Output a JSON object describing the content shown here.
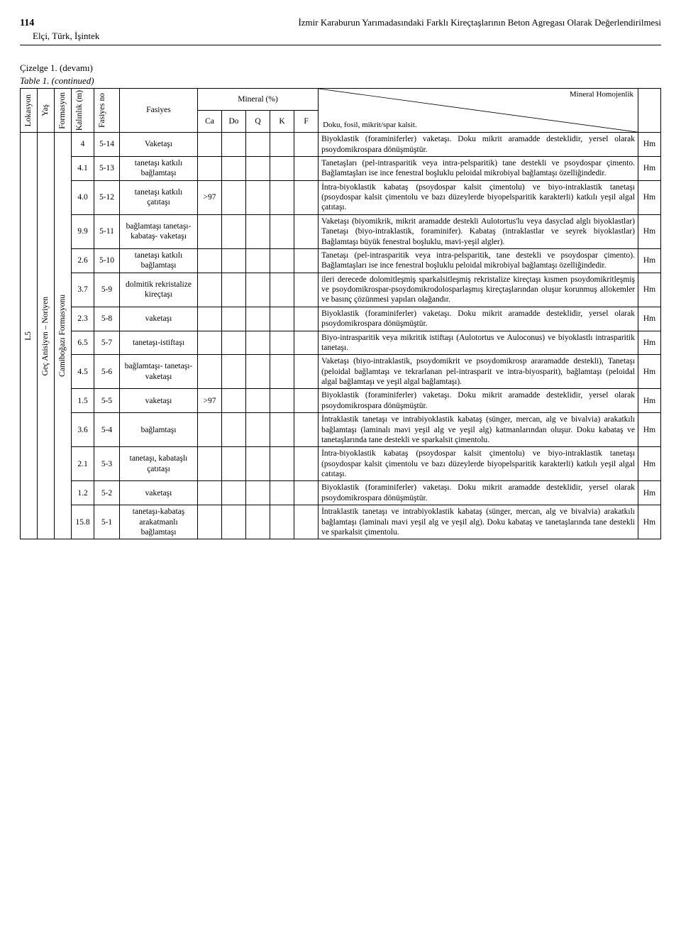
{
  "header": {
    "page_number": "114",
    "title": "İzmir Karaburun Yarımadasındaki Farklı Kireçtaşlarının Beton Agregası Olarak Değerlendirilmesi",
    "authors": "Elçi, Türk, İşintek"
  },
  "caption": {
    "line1_a": "Çizelge 1.",
    "line1_b": "(devamı)",
    "line2_a": "Table 1.",
    "line2_b": "(continued)"
  },
  "table_head": {
    "lokasyon": "Lokasyon",
    "yas": "Yaş",
    "formasyon": "Formasyon",
    "kalinlik": "Kalınlık (m)",
    "fasiyes_no": "Fasiyes no",
    "fasiyes": "Fasiyes",
    "mineral_pct": "Mineral (%)",
    "mineral_homojenlik": "Mineral Homojenlik",
    "doku": "Doku, fosil, mikrit/spar kalsit.",
    "Ca": "Ca",
    "Do": "Do",
    "Q": "Q",
    "K": "K",
    "F": "F"
  },
  "group": {
    "lokasyon": "L5",
    "yas": "Geç Anisiyen – Noriyen",
    "formasyon": "Camiboğazı Formasyonu"
  },
  "rows": [
    {
      "kal": "4",
      "fno": "5-14",
      "fas": "Vaketaşı",
      "ca": "",
      "do": "",
      "q": "",
      "k": "",
      "f": "",
      "desc": "Biyoklastik (foraminiferler) vaketaşı. Doku mikrit aramadde desteklidir, yersel olarak psoydomikrospara dönüşmüştür.",
      "hm": "Hm"
    },
    {
      "kal": "4.1",
      "fno": "5-13",
      "fas": "tanetaşı katkılı bağlamtaşı",
      "ca": "",
      "do": "",
      "q": "",
      "k": "",
      "f": "",
      "desc": "Tanetaşları (pel-intrasparitik veya intra-pelsparitik) tane destekli ve psoydospar çimento. Bağlamtaşları ise ince fenestral boşluklu peloidal mikrobiyal bağlamtaşı özelliğindedir.",
      "hm": "Hm"
    },
    {
      "kal": "4.0",
      "fno": "5-12",
      "fas": "tanetaşı katkılı çatıtaşı",
      "ca": ">97",
      "do": "",
      "q": "",
      "k": "",
      "f": "",
      "desc": "İntra-biyoklastik kabataş (psoydospar kalsit çimentolu) ve biyo-intraklastik tanetaşı (psoydospar kalsit çimentolu ve bazı düzeylerde biyopelsparitik karakterli) katkılı yeşil algal çatıtaşı.",
      "hm": "Hm"
    },
    {
      "kal": "9.9",
      "fno": "5-11",
      "fas": "bağlamtaşı tanetaşı- kabataş- vaketaşı",
      "ca": "",
      "do": "",
      "q": "",
      "k": "",
      "f": "",
      "desc": "Vaketaşı (biyomikrik, mikrit aramadde destekli Aulotortus'lu veya dasyclad alglı biyoklastlar) Tanetaşı (biyo-intraklastik, foraminifer). Kabataş (intraklastlar ve seyrek biyoklastlar) Bağlamtaşı büyük fenestral boşluklu, mavi-yeşil algler).",
      "hm": "Hm"
    },
    {
      "kal": "2.6",
      "fno": "5-10",
      "fas": "tanetaşı katkılı bağlamtaşı",
      "ca": "",
      "do": "",
      "q": "",
      "k": "",
      "f": "",
      "desc": "Tanetaşı (pel-intrasparitik veya intra-pelsparitik, tane destekli ve psoydospar çimento). Bağlamtaşları ise ince fenestral boşluklu peloidal mikrobiyal bağlamtaşı özelliğindedir.",
      "hm": "Hm"
    },
    {
      "kal": "3.7",
      "fno": "5-9",
      "fas": "dolmitik rekristalize kireçtaşı",
      "ca": "",
      "do": "",
      "q": "",
      "k": "",
      "f": "",
      "desc": "ileri derecede dolomitleşmiş sparkalsitleşmiş rekristalize kireçtaşı kısmen psoydomikritleşmiş ve psoydomikrospar-psoydomikrodolosparlaşmış kireçtaşlarından oluşur korunmuş allokemler ve basınç çözünmesi yapıları olağandır.",
      "hm": "Hm"
    },
    {
      "kal": "2.3",
      "fno": "5-8",
      "fas": "vaketaşı",
      "ca": "",
      "do": "",
      "q": "",
      "k": "",
      "f": "",
      "desc": "Biyoklastik (foraminiferler) vaketaşı. Doku mikrit aramadde desteklidir, yersel olarak psoydomikrospara dönüşmüştür.",
      "hm": "Hm"
    },
    {
      "kal": "6.5",
      "fno": "5-7",
      "fas": "tanetaşı-istiftaşı",
      "ca": "",
      "do": "",
      "q": "",
      "k": "",
      "f": "",
      "desc": "Biyo-intrasparitik veya mikritik istiftaşı (Aulotortus ve Auloconus) ve biyoklastlı intrasparitik tanetaşı.",
      "hm": "Hm"
    },
    {
      "kal": "4.5",
      "fno": "5-6",
      "fas": "bağlamtaşı- tanetaşı- vaketaşı",
      "ca": "",
      "do": "",
      "q": "",
      "k": "",
      "f": "",
      "desc": "Vaketaşı (biyo-intraklastik, psoydomikrit ve psoydomikrosp araramadde destekli), Tanetaşı (peloidal bağlamtaşı ve tekrarlanan pel-intrasparit ve intra-biyosparit), bağlamtaşı (peloidal algal bağlamtaşı ve yeşil algal bağlamtaşı).",
      "hm": "Hm"
    },
    {
      "kal": "1.5",
      "fno": "5-5",
      "fas": "vaketaşı",
      "ca": ">97",
      "do": "",
      "q": "",
      "k": "",
      "f": "",
      "desc": "Biyoklastik (foraminiferler) vaketaşı. Doku mikrit aramadde desteklidir, yersel olarak psoydomikrospara dönüşmüştür.",
      "hm": "Hm"
    },
    {
      "kal": "3.6",
      "fno": "5-4",
      "fas": "bağlamtaşı",
      "ca": "",
      "do": "",
      "q": "",
      "k": "",
      "f": "",
      "desc": "İntraklastik tanetaşı ve intrabiyoklastik kabataş (sünger, mercan, alg ve bivalvia) arakatkılı bağlamtaşı (laminalı mavi yeşil alg ve yeşil alg) katmanlarından oluşur. Doku kabataş ve tanetaşlarında tane destekli ve sparkalsit çimentolu.",
      "hm": "Hm"
    },
    {
      "kal": "2.1",
      "fno": "5-3",
      "fas": "tanetaşı, kabataşlı çatıtaşı",
      "ca": "",
      "do": "",
      "q": "",
      "k": "",
      "f": "",
      "desc": "İntra-biyoklastik kabataş (psoydospar kalsit çimentolu) ve biyo-intraklastik tanetaşı (psoydospar kalsit çimentolu ve bazı düzeylerde biyopelsparitik karakterli) katkılı yeşil algal catıtaşı.",
      "hm": "Hm"
    },
    {
      "kal": "1.2",
      "fno": "5-2",
      "fas": "vaketaşı",
      "ca": "",
      "do": "",
      "q": "",
      "k": "",
      "f": "",
      "desc": "Biyoklastik (foraminiferler) vaketaşı. Doku mikrit aramadde desteklidir, yersel olarak psoydomikrospara dönüşmüştür.",
      "hm": "Hm"
    },
    {
      "kal": "15.8",
      "fno": "5-1",
      "fas": "tanetaşı-kabataş arakatmanlı bağlamtaşı",
      "ca": "",
      "do": "",
      "q": "",
      "k": "",
      "f": "",
      "desc": "İntraklastik tanetaşı ve intrabiyoklastik kabataş (sünger, mercan, alg ve bivalvia) arakatkılı bağlamtaşı (laminalı mavi yeşil alg ve yeşil alg). Doku kabataş ve tanetaşlarında tane destekli ve sparkalsit çimentolu.",
      "hm": "Hm"
    }
  ],
  "style": {
    "page_bg": "#ffffff",
    "text_color": "#000000",
    "border_color": "#000000",
    "font_family": "Times New Roman",
    "body_fontsize_pt": 9,
    "header_fontsize_pt": 10
  }
}
